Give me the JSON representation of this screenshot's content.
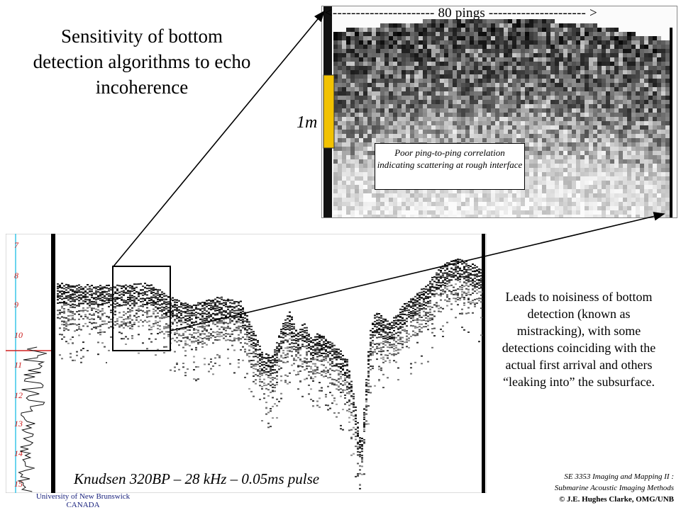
{
  "title": "Sensitivity of bottom detection algorithms to echo incoherence",
  "inset": {
    "pings_label": "<---------------------- 80 pings --------------------- >",
    "scale_label": "1m",
    "caption": "Poor ping-to-ping correlation indicating scattering at rough interface"
  },
  "echogram": {
    "depth_ticks": [
      "7",
      "8",
      "9",
      "10",
      "11",
      "12",
      "13",
      "14",
      "15"
    ]
  },
  "leads_text": "Leads to noisiness of bottom detection (known as mistracking), with some detections coinciding with the actual first arrival and others “leaking into” the subsurface.",
  "instrument_label": "Knudsen 320BP – 28 kHz – 0.05ms pulse",
  "university": {
    "line1": "University of New Brunswick",
    "line2": "CANADA"
  },
  "credit": {
    "line1": "SE 3353 Imaging and Mapping II :",
    "line2": "Submarine Acoustic Imaging Methods",
    "line3": "© J.E. Hughes Clarke, OMG/UNB"
  },
  "colors": {
    "highlight_bar": "#f2c200",
    "depth_axis_line": "#39c6e8",
    "depth_labels": "#cc2020",
    "detection_line": "#d02020",
    "university_text": "#1a237e"
  }
}
